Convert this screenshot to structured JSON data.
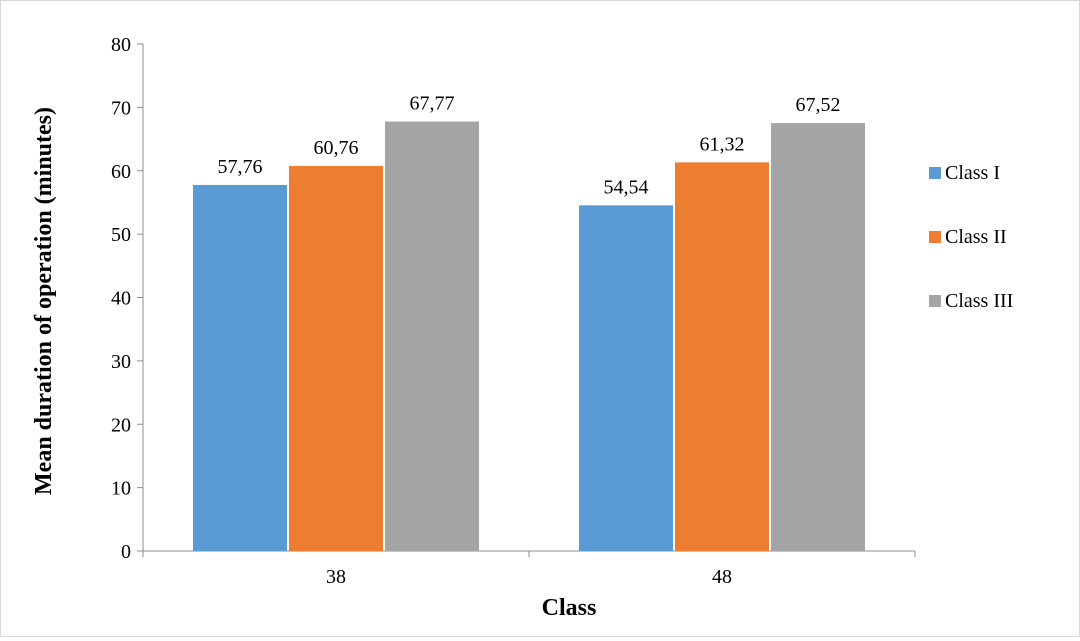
{
  "chart_data": {
    "type": "bar",
    "title": "",
    "xlabel": "Class",
    "ylabel": "Mean duration of operation (minutes)",
    "categories": [
      "38",
      "48"
    ],
    "series": [
      {
        "name": "Class I",
        "color": "#5b9bd5",
        "values": [
          57.76,
          54.54
        ],
        "labels": [
          "57,76",
          "54,54"
        ]
      },
      {
        "name": "Class II",
        "color": "#ed7d31",
        "values": [
          60.76,
          61.32
        ],
        "labels": [
          "60,76",
          "61,32"
        ]
      },
      {
        "name": "Class III",
        "color": "#a5a5a5",
        "values": [
          67.77,
          67.52
        ],
        "labels": [
          "67,77",
          "67,52"
        ]
      }
    ],
    "ylim": [
      0,
      80
    ],
    "yticks": [
      0,
      10,
      20,
      30,
      40,
      50,
      60,
      70,
      80
    ],
    "grid": false,
    "legend_position": "right"
  }
}
